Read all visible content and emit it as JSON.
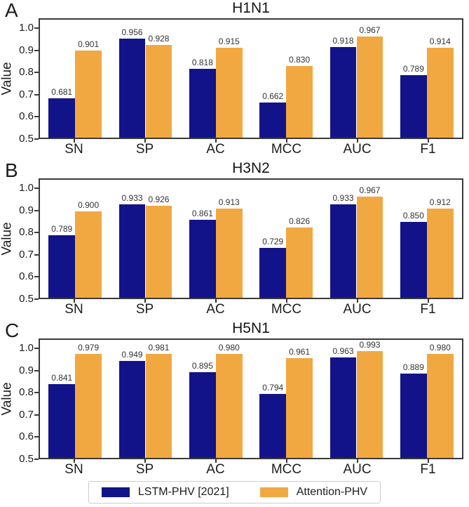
{
  "figure": {
    "background": "#ffffff"
  },
  "legend": {
    "items": [
      {
        "label": "LSTM-PHV [2021]",
        "color": "#131389"
      },
      {
        "label": "Attention-PHV",
        "color": "#F2A840"
      }
    ],
    "position": "bottom-center"
  },
  "chart_data": [
    {
      "type": "bar",
      "panel": "A",
      "title": "H1N1",
      "ylabel": "Value",
      "categories": [
        "SN",
        "SP",
        "AC",
        "MCC",
        "AUC",
        "F1"
      ],
      "series": [
        {
          "name": "LSTM-PHV [2021]",
          "color": "#131389",
          "values": [
            0.681,
            0.956,
            0.818,
            0.662,
            0.918,
            0.789
          ]
        },
        {
          "name": "Attention-PHV",
          "color": "#F2A840",
          "values": [
            0.901,
            0.928,
            0.915,
            0.83,
            0.967,
            0.914
          ]
        }
      ],
      "ylim": [
        0.5,
        1.045
      ],
      "yticks": [
        1.0,
        0.9,
        0.8,
        0.7,
        0.6,
        0.5
      ],
      "grid": false
    },
    {
      "type": "bar",
      "panel": "B",
      "title": "H3N2",
      "ylabel": "Value",
      "categories": [
        "SN",
        "SP",
        "AC",
        "MCC",
        "AUC",
        "F1"
      ],
      "series": [
        {
          "name": "LSTM-PHV [2021]",
          "color": "#131389",
          "values": [
            0.789,
            0.933,
            0.861,
            0.729,
            0.933,
            0.85
          ]
        },
        {
          "name": "Attention-PHV",
          "color": "#F2A840",
          "values": [
            0.9,
            0.926,
            0.913,
            0.826,
            0.967,
            0.912
          ]
        }
      ],
      "ylim": [
        0.5,
        1.045
      ],
      "yticks": [
        1.0,
        0.9,
        0.8,
        0.7,
        0.6,
        0.5
      ],
      "grid": false
    },
    {
      "type": "bar",
      "panel": "C",
      "title": "H5N1",
      "ylabel": "Value",
      "categories": [
        "SN",
        "SP",
        "AC",
        "MCC",
        "AUC",
        "F1"
      ],
      "series": [
        {
          "name": "LSTM-PHV [2021]",
          "color": "#131389",
          "values": [
            0.841,
            0.949,
            0.895,
            0.794,
            0.963,
            0.889
          ]
        },
        {
          "name": "Attention-PHV",
          "color": "#F2A840",
          "values": [
            0.979,
            0.981,
            0.98,
            0.961,
            0.993,
            0.98
          ]
        }
      ],
      "ylim": [
        0.5,
        1.045
      ],
      "yticks": [
        1.0,
        0.9,
        0.8,
        0.7,
        0.6,
        0.5
      ],
      "grid": false
    }
  ]
}
